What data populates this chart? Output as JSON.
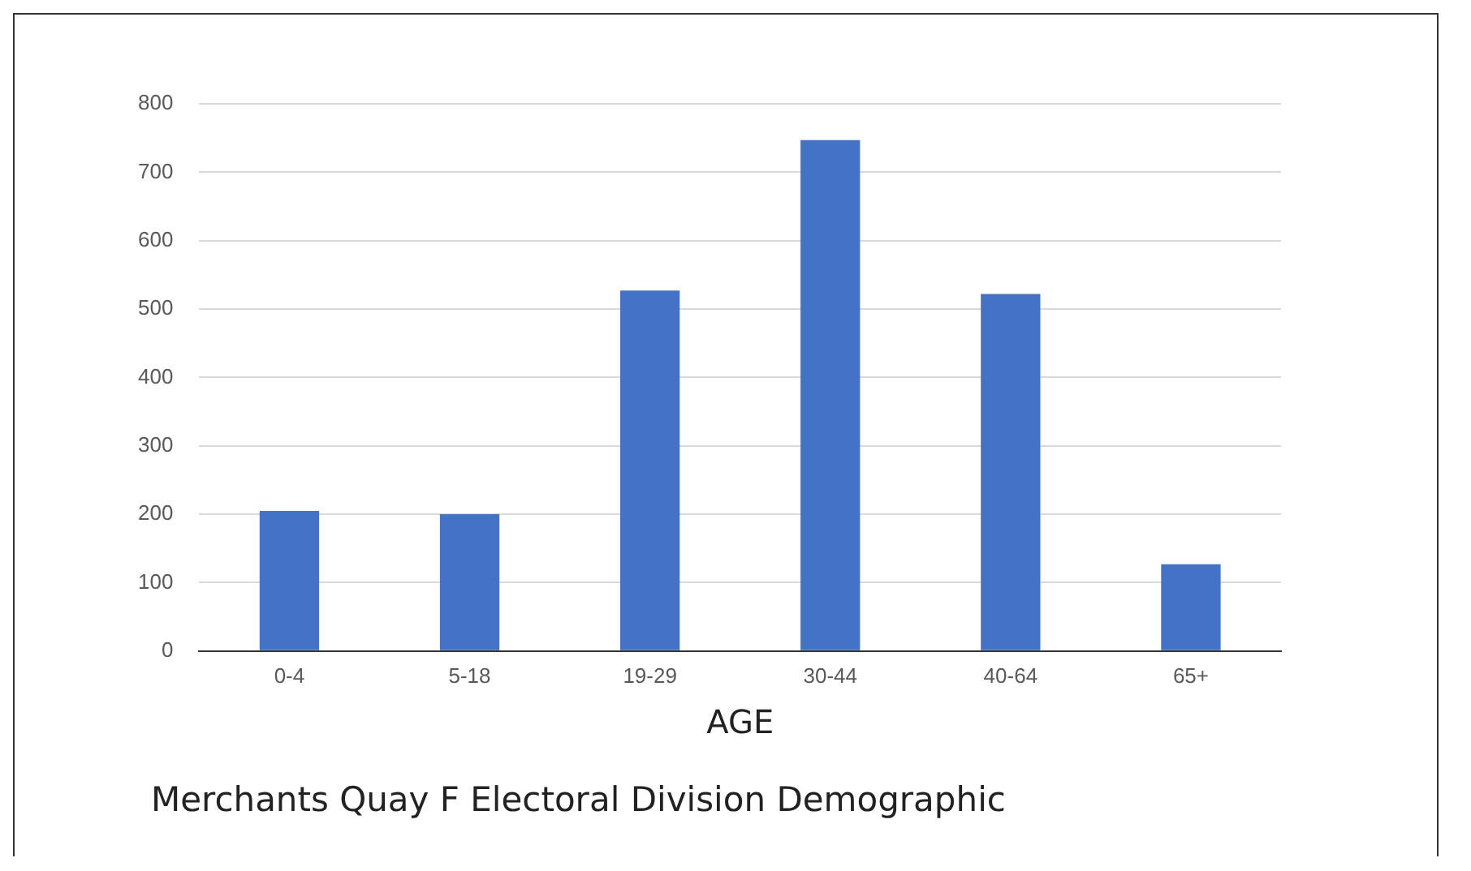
{
  "chart_data": {
    "type": "bar",
    "xlabel": "AGE",
    "categories": [
      "0-4",
      "5-18",
      "19-29",
      "30-44",
      "40-64",
      "65+"
    ],
    "values": [
      205,
      200,
      527,
      747,
      522,
      127
    ],
    "color": "#4472c4",
    "ylim": [
      0,
      800
    ],
    "yticks": [
      0,
      100,
      200,
      300,
      400,
      500,
      600,
      700,
      800
    ],
    "grid": "y",
    "annotations": [
      "Merchants Quay F Electoral Division Demographic"
    ]
  }
}
